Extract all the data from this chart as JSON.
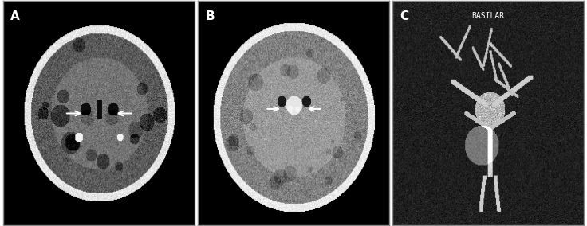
{
  "figure_width": 7.36,
  "figure_height": 2.84,
  "dpi": 100,
  "background_color": "#ffffff",
  "panels": [
    "A",
    "B",
    "C"
  ],
  "panel_label_color": "white",
  "panel_label_fontsize": 11,
  "panel_label_fontweight": "bold",
  "basilar_text": "BASILAR",
  "basilar_fontsize": 7,
  "basilar_color": "white",
  "arrow_color": "white",
  "separator_color": "#888888"
}
